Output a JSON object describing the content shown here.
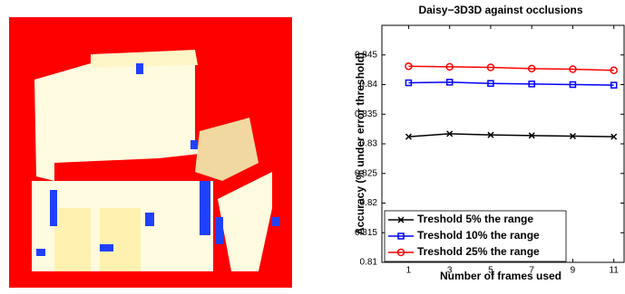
{
  "chart_data": {
    "type": "line",
    "title": "Daisy−3D3D against occlusions",
    "xlabel": "Number of frames used",
    "ylabel": "Accuracy (% under error threshold)",
    "x": [
      1,
      3,
      5,
      7,
      9,
      11
    ],
    "xlim": [
      -0.3,
      11.5
    ],
    "xticks": [
      1,
      3,
      5,
      7,
      9,
      11
    ],
    "ylim": [
      0.81,
      0.85
    ],
    "yticks": [
      0.81,
      0.815,
      0.82,
      0.825,
      0.83,
      0.835,
      0.84,
      0.845
    ],
    "legend": "lower left",
    "series": [
      {
        "name": "Treshold 5% the range",
        "color": "#000000",
        "marker": "x",
        "values": [
          0.8312,
          0.8317,
          0.8315,
          0.8314,
          0.8313,
          0.8312
        ]
      },
      {
        "name": "Treshold 10% the range",
        "color": "#0000ff",
        "marker": "square",
        "values": [
          0.8403,
          0.8404,
          0.8402,
          0.8401,
          0.84,
          0.8399
        ]
      },
      {
        "name": "Treshold 25% the range",
        "color": "#ff0000",
        "marker": "circle",
        "values": [
          0.8431,
          0.843,
          0.8429,
          0.8427,
          0.8426,
          0.8424
        ]
      }
    ]
  }
}
